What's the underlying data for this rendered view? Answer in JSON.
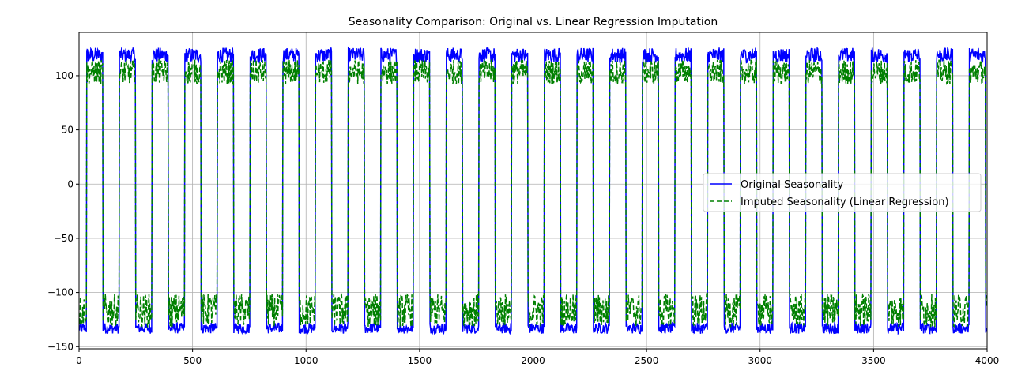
{
  "chart_data": {
    "type": "line",
    "title": "Seasonality Comparison: Original vs. Linear Regression Imputation",
    "xlabel": "",
    "ylabel": "",
    "xlim": [
      0,
      4000
    ],
    "ylim": [
      -152,
      140
    ],
    "xticks": [
      0,
      500,
      1000,
      1500,
      2000,
      2500,
      3000,
      3500,
      4000
    ],
    "yticks": [
      -150,
      -100,
      -50,
      0,
      50,
      100
    ],
    "xtick_labels": [
      "0",
      "500",
      "1000",
      "1500",
      "2000",
      "2500",
      "3000",
      "3500",
      "4000"
    ],
    "ytick_labels": [
      "−150",
      "−100",
      "−50",
      "0",
      "50",
      "100"
    ],
    "grid": true,
    "legend_position": "center-right",
    "period": 144,
    "first_rise": 34,
    "high_duration": 72,
    "series": [
      {
        "name": "Original Seasonality",
        "color": "#0000ff",
        "style": "solid",
        "high_level": [
          112,
          126
        ],
        "low_level": [
          -138,
          -128
        ]
      },
      {
        "name": "Imputed Seasonality (Linear Regression)",
        "color": "#008000",
        "style": "dashed",
        "high_level": [
          92,
          115
        ],
        "low_level": [
          -132,
          -101
        ]
      }
    ]
  }
}
